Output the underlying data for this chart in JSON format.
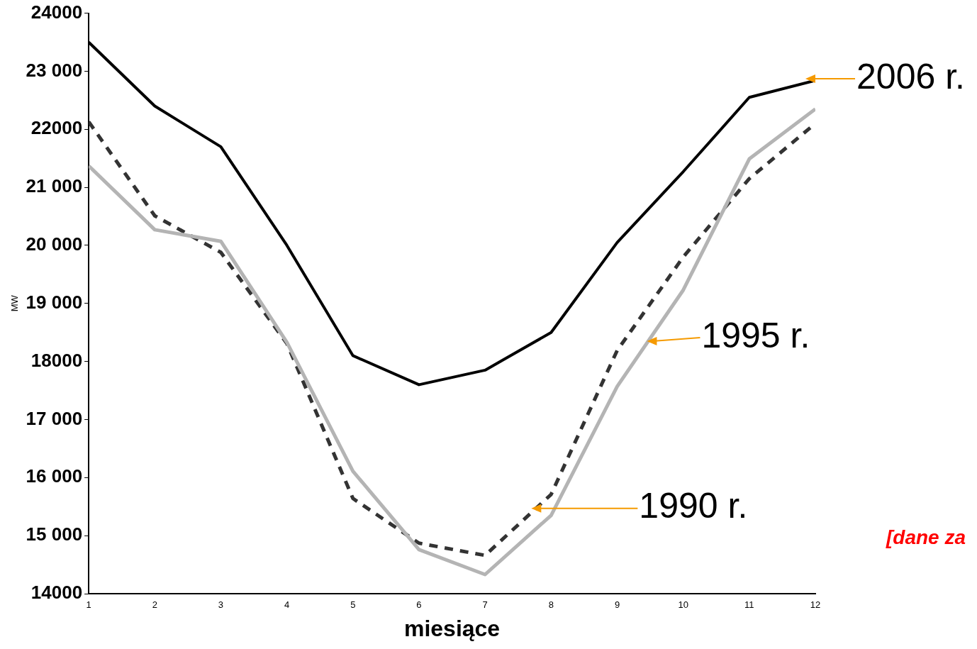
{
  "chart_data": {
    "type": "line",
    "xlabel": "miesiące",
    "ylabel": "MW",
    "x": [
      1,
      2,
      3,
      4,
      5,
      6,
      7,
      8,
      9,
      10,
      11,
      12
    ],
    "series": [
      {
        "color": "#000000",
        "line_style": "solid",
        "values": [
          23500,
          22400,
          21700,
          20000,
          18100,
          17600,
          17850,
          18500,
          20050,
          21270,
          22550,
          22840
        ]
      },
      {
        "color": "#333333",
        "line_style": "dashed",
        "values": [
          22130,
          20510,
          19880,
          18310,
          15640,
          14870,
          14660,
          15710,
          18190,
          19800,
          21150,
          22100
        ]
      },
      {
        "color": "#b4b4b4",
        "line_style": "solid",
        "values": [
          21370,
          20270,
          20070,
          18330,
          16110,
          14760,
          14330,
          15350,
          17570,
          19230,
          21490,
          22350
        ]
      }
    ],
    "xlim": [
      1,
      12
    ],
    "xticks": [
      1,
      2,
      3,
      4,
      5,
      6,
      7,
      8,
      9,
      10,
      11,
      12
    ],
    "ylim": [
      14000,
      24000
    ],
    "yticks": [
      {
        "value": 14000,
        "label": "14000"
      },
      {
        "value": 15000,
        "label": "15 000"
      },
      {
        "value": 16000,
        "label": "16 000"
      },
      {
        "value": 17000,
        "label": "17 000"
      },
      {
        "value": 18000,
        "label": "18000"
      },
      {
        "value": 19000,
        "label": "19 000"
      },
      {
        "value": 20000,
        "label": "20 000"
      },
      {
        "value": 21000,
        "label": "21 000"
      },
      {
        "value": 22000,
        "label": "22000"
      },
      {
        "value": 23000,
        "label": "23 000"
      },
      {
        "value": 24000,
        "label": "24000"
      }
    ],
    "grid": false,
    "legend": false,
    "marker": "none",
    "annotations": [
      {
        "text": "2006 r.",
        "x": 11.85,
        "y": 22870
      },
      {
        "text": "1995 r.",
        "x": 9.45,
        "y": 18350
      },
      {
        "text": "1990 r.",
        "x": 7.7,
        "y": 15470
      },
      "[dane za"
    ]
  }
}
